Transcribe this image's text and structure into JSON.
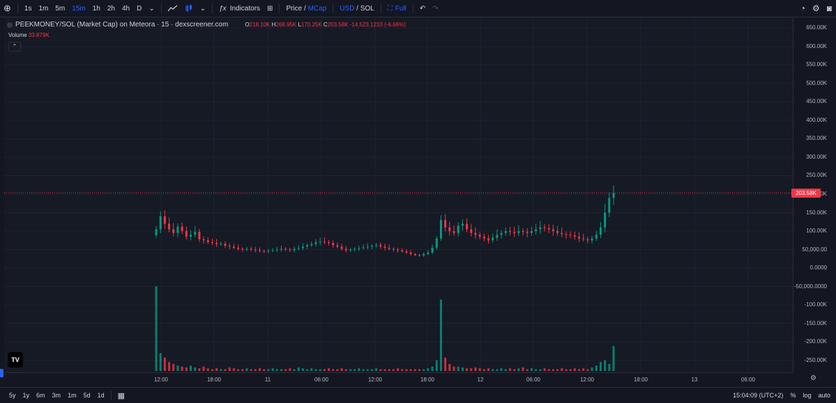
{
  "toolbar": {
    "timeframes": [
      "1s",
      "1m",
      "5m",
      "15m",
      "1h",
      "2h",
      "4h",
      "D"
    ],
    "active_timeframe": "15m",
    "indicators_label": "Indicators",
    "price_label": "Price",
    "slash": "/",
    "mcap_label": "MCap",
    "usd_label": "USD",
    "sol_label": "SOL",
    "full_label": "Full"
  },
  "legend": {
    "title": "PEEKMONEY/SOL (Market Cap) on Meteora · 15 · dexscreener.com",
    "o_label": "O",
    "o_value": "218.10K",
    "h_label": "H",
    "h_value": "268.95K",
    "l_label": "L",
    "l_value": "170.25K",
    "c_label": "C",
    "c_value": "203.58K",
    "change": "-14,523.1233 (-6.66%)",
    "volume_label": "Volume",
    "volume_value": "33.879K"
  },
  "yaxis_labels": [
    "650.00K",
    "600.00K",
    "550.00K",
    "500.00K",
    "450.00K",
    "400.00K",
    "350.00K",
    "300.00K",
    "250.00K",
    "200.00K",
    "150.00K",
    "100.00K",
    "50,000.00",
    "0.0000",
    "-50,000.0000",
    "-100.00K",
    "-150.00K",
    "-200.00K",
    "-250.00K"
  ],
  "current_price_tag": "203.58K",
  "xaxis_labels": [
    "12:00",
    "18:00",
    "11",
    "06:00",
    "12:00",
    "18:00",
    "12",
    "06:00",
    "12:00",
    "18:00",
    "13",
    "06:00"
  ],
  "bottombar": {
    "ranges": [
      "5y",
      "1y",
      "6m",
      "3m",
      "1m",
      "5d",
      "1d"
    ],
    "time": "15:04:09 (UTC+2)",
    "percent": "%",
    "log": "log",
    "auto": "auto"
  },
  "logo_text": "TV",
  "colors": {
    "up": "#089981",
    "down": "#f23645",
    "accent": "#2962ff"
  },
  "chart_data": {
    "type": "candlestick",
    "y_unit": "market cap (SOL)",
    "ylim": [
      -260000,
      660000
    ],
    "closes": [
      105000,
      140000,
      120000,
      105000,
      95000,
      112000,
      100000,
      85000,
      90000,
      98000,
      78000,
      75000,
      70000,
      68000,
      65000,
      66000,
      60000,
      58000,
      55000,
      52000,
      50000,
      52000,
      50000,
      48000,
      46000,
      45000,
      47000,
      48000,
      50000,
      52000,
      50000,
      48000,
      52000,
      54000,
      58000,
      62000,
      65000,
      70000,
      72000,
      70000,
      68000,
      62000,
      58000,
      52000,
      48000,
      50000,
      52000,
      54000,
      56000,
      58000,
      60000,
      62000,
      58000,
      55000,
      52000,
      50000,
      48000,
      45000,
      42000,
      38000,
      35000,
      34000,
      38000,
      42000,
      55000,
      80000,
      130000,
      110000,
      100000,
      95000,
      115000,
      120000,
      105000,
      95000,
      90000,
      85000,
      80000,
      75000,
      82000,
      90000,
      95000,
      100000,
      98000,
      95000,
      100000,
      98000,
      95000,
      100000,
      105000,
      110000,
      108000,
      105000,
      100000,
      95000,
      92000,
      90000,
      88000,
      85000,
      80000,
      78000,
      75000,
      80000,
      90000,
      110000,
      150000,
      190000,
      203580
    ],
    "volumes_relative": [
      0.95,
      0.2,
      0.15,
      0.1,
      0.08,
      0.06,
      0.05,
      0.04,
      0.06,
      0.04,
      0.03,
      0.05,
      0.03,
      0.02,
      0.03,
      0.02,
      0.02,
      0.04,
      0.03,
      0.02,
      0.02,
      0.03,
      0.02,
      0.02,
      0.03,
      0.02,
      0.02,
      0.03,
      0.02,
      0.02,
      0.02,
      0.03,
      0.02,
      0.04,
      0.03,
      0.02,
      0.03,
      0.02,
      0.02,
      0.02,
      0.03,
      0.02,
      0.02,
      0.03,
      0.02,
      0.02,
      0.02,
      0.03,
      0.02,
      0.02,
      0.02,
      0.03,
      0.02,
      0.02,
      0.02,
      0.02,
      0.03,
      0.02,
      0.02,
      0.02,
      0.02,
      0.02,
      0.02,
      0.03,
      0.05,
      0.12,
      0.8,
      0.15,
      0.08,
      0.05,
      0.05,
      0.04,
      0.03,
      0.03,
      0.04,
      0.03,
      0.02,
      0.03,
      0.02,
      0.02,
      0.03,
      0.02,
      0.03,
      0.02,
      0.03,
      0.04,
      0.02,
      0.03,
      0.02,
      0.02,
      0.03,
      0.02,
      0.02,
      0.02,
      0.03,
      0.02,
      0.02,
      0.03,
      0.02,
      0.03,
      0.02,
      0.04,
      0.06,
      0.1,
      0.12,
      0.08,
      0.28
    ]
  }
}
